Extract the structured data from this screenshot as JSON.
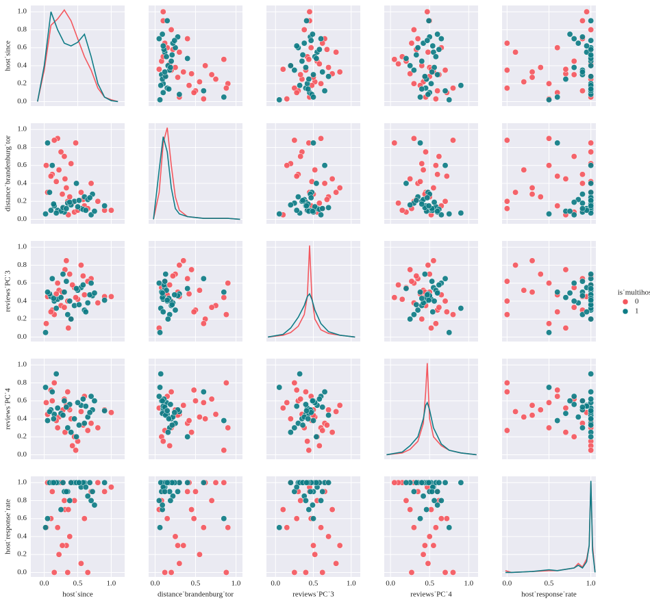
{
  "chart_data": {
    "type": "pairplot",
    "legend": {
      "title": "is˙multihost",
      "loc": "right"
    },
    "variables": [
      {
        "label": "host˙since",
        "xlim": [
          -0.2,
          1.2
        ],
        "xticks": [
          {
            "value": 0,
            "label": "0.0"
          },
          {
            "value": 0.5,
            "label": "0.5"
          },
          {
            "value": 1,
            "label": "1.0"
          }
        ],
        "ylim": [
          -0.05,
          1.07
        ],
        "yticks": [
          {
            "value": 0,
            "label": "0.0"
          },
          {
            "value": 0.2,
            "label": "0.2"
          },
          {
            "value": 0.4,
            "label": "0.4"
          },
          {
            "value": 0.6,
            "label": "0.6"
          },
          {
            "value": 0.8,
            "label": "0.8"
          },
          {
            "value": 1,
            "label": "1.0"
          }
        ],
        "kde_x": [
          -0.1,
          0,
          0.1,
          0.2,
          0.3,
          0.4,
          0.5,
          0.6,
          0.7,
          0.8,
          0.9,
          1.0,
          1.1
        ]
      },
      {
        "label": "distance˙brandenburg˙tor",
        "xlim": [
          -0.08,
          1.08
        ],
        "xticks": [
          {
            "value": 0,
            "label": "0.0"
          },
          {
            "value": 0.5,
            "label": "0.5"
          },
          {
            "value": 1,
            "label": "1.0"
          }
        ],
        "ylim": [
          -0.05,
          1.07
        ],
        "yticks": [
          {
            "value": 0,
            "label": "0.0"
          },
          {
            "value": 0.2,
            "label": "0.2"
          },
          {
            "value": 0.4,
            "label": "0.4"
          },
          {
            "value": 0.6,
            "label": "0.6"
          },
          {
            "value": 0.8,
            "label": "0.8"
          },
          {
            "value": 1,
            "label": "1.0"
          }
        ],
        "kde_x": [
          -0.02,
          0.05,
          0.1,
          0.15,
          0.2,
          0.25,
          0.3,
          0.4,
          0.5,
          0.6,
          0.8,
          0.9,
          1.05
        ]
      },
      {
        "label": "reviews˙PC˙3",
        "xlim": [
          -0.12,
          1.12
        ],
        "xticks": [
          {
            "value": 0,
            "label": "0.0"
          },
          {
            "value": 0.5,
            "label": "0.5"
          },
          {
            "value": 1,
            "label": "1.0"
          }
        ],
        "ylim": [
          -0.05,
          1.07
        ],
        "yticks": [
          {
            "value": 0,
            "label": "0.0"
          },
          {
            "value": 0.2,
            "label": "0.2"
          },
          {
            "value": 0.4,
            "label": "0.4"
          },
          {
            "value": 0.6,
            "label": "0.6"
          },
          {
            "value": 0.8,
            "label": "0.8"
          },
          {
            "value": 1,
            "label": "1.0"
          }
        ],
        "kde_x": [
          -0.1,
          0.1,
          0.2,
          0.3,
          0.38,
          0.42,
          0.45,
          0.48,
          0.52,
          0.6,
          0.7,
          0.85,
          1.05
        ]
      },
      {
        "label": "reviews˙PC˙4",
        "xlim": [
          -0.08,
          1.12
        ],
        "xticks": [
          {
            "value": 0,
            "label": "0.0"
          },
          {
            "value": 0.5,
            "label": "0.5"
          },
          {
            "value": 1,
            "label": "1.0"
          }
        ],
        "ylim": [
          -0.05,
          1.07
        ],
        "yticks": [
          {
            "value": 0,
            "label": "0.0"
          },
          {
            "value": 0.2,
            "label": "0.2"
          },
          {
            "value": 0.4,
            "label": "0.4"
          },
          {
            "value": 0.6,
            "label": "0.6"
          },
          {
            "value": 0.8,
            "label": "0.8"
          },
          {
            "value": 1,
            "label": "1.0"
          }
        ],
        "kde_x": [
          -0.05,
          0.15,
          0.25,
          0.35,
          0.42,
          0.45,
          0.47,
          0.5,
          0.55,
          0.65,
          0.75,
          0.9,
          1.1
        ]
      },
      {
        "label": "host˙response˙rate",
        "xlim": [
          -0.06,
          1.06
        ],
        "xticks": [
          {
            "value": 0,
            "label": "0.0"
          },
          {
            "value": 0.5,
            "label": "0.5"
          },
          {
            "value": 1,
            "label": "1.0"
          }
        ],
        "ylim": [
          -0.05,
          1.07
        ],
        "yticks": [
          {
            "value": 0,
            "label": "0.0"
          },
          {
            "value": 0.2,
            "label": "0.2"
          },
          {
            "value": 0.4,
            "label": "0.4"
          },
          {
            "value": 0.6,
            "label": "0.6"
          },
          {
            "value": 0.8,
            "label": "0.8"
          },
          {
            "value": 1,
            "label": "1.0"
          }
        ],
        "kde_x": [
          -0.02,
          0.05,
          0.3,
          0.5,
          0.6,
          0.8,
          0.85,
          0.9,
          0.95,
          0.98,
          1.0,
          1.02,
          1.05
        ]
      }
    ],
    "series": [
      {
        "name": "0",
        "color": "#f4575e",
        "columns": [
          [
            0.05,
            0.12,
            0.2,
            0.28,
            0.31,
            0.35,
            0.4,
            0.45,
            0.33,
            0.25,
            0.6,
            0.7,
            0.15,
            0.5,
            0.38,
            0.22,
            0.8,
            0.9,
            0.03,
            0.42,
            0.55,
            0.3,
            0.18,
            0.65,
            0.36,
            0.47,
            0.27,
            1.0,
            0.1,
            0.58
          ],
          [
            0.3,
            0.5,
            0.9,
            0.12,
            0.45,
            0.2,
            0.62,
            0.08,
            0.35,
            0.75,
            0.15,
            0.4,
            0.88,
            0.1,
            0.25,
            0.55,
            0.2,
            0.1,
            0.6,
            0.18,
            0.3,
            0.7,
            0.42,
            0.12,
            0.05,
            0.85,
            0.28,
            0.1,
            0.48,
            0.22
          ],
          [
            0.45,
            0.3,
            0.6,
            0.5,
            0.75,
            0.4,
            0.2,
            0.55,
            0.85,
            0.35,
            0.47,
            0.65,
            0.25,
            0.42,
            0.7,
            0.52,
            0.38,
            0.45,
            0.15,
            0.58,
            0.8,
            0.33,
            0.48,
            0.62,
            0.1,
            0.44,
            0.5,
            0.45,
            0.28,
            0.68
          ],
          [
            0.45,
            0.6,
            0.3,
            0.5,
            0.25,
            0.7,
            0.4,
            0.2,
            0.55,
            0.45,
            0.65,
            0.35,
            0.8,
            0.15,
            0.5,
            0.42,
            0.3,
            0.5,
            0.58,
            0.1,
            0.48,
            0.62,
            0.38,
            0.27,
            0.52,
            0.05,
            0.44,
            0.47,
            0.72,
            0.33
          ],
          [
            1.0,
            0.9,
            0.5,
            1.0,
            0.7,
            0.0,
            1.0,
            0.8,
            0.3,
            1.0,
            0.6,
            0.9,
            0.0,
            1.0,
            0.4,
            0.2,
            1.0,
            0.9,
            0.5,
            1.0,
            0.1,
            0.8,
            1.0,
            0.0,
            0.7,
            1.0,
            0.3,
            0.95,
            0.6,
            1.0
          ]
        ],
        "kde": [
          [
            0,
            0.35,
            0.85,
            0.92,
            1.02,
            0.9,
            0.7,
            0.5,
            0.35,
            0.15,
            0.05,
            0.02,
            0
          ],
          [
            0,
            0.3,
            0.85,
            1.02,
            0.6,
            0.25,
            0.1,
            0.03,
            0.02,
            0.01,
            0.01,
            0.01,
            0
          ],
          [
            0,
            0.02,
            0.05,
            0.12,
            0.25,
            0.45,
            1.02,
            0.45,
            0.2,
            0.08,
            0.04,
            0.02,
            0
          ],
          [
            0,
            0.02,
            0.06,
            0.15,
            0.35,
            0.7,
            1.02,
            0.4,
            0.2,
            0.1,
            0.05,
            0.02,
            0
          ],
          [
            0.02,
            0,
            0.01,
            0.02,
            0.02,
            0.05,
            0.1,
            0.06,
            0.15,
            0.3,
            1.0,
            0.3,
            0
          ]
        ]
      },
      {
        "name": "1",
        "color": "#0e7c86",
        "columns": [
          [
            0.1,
            0.15,
            0.3,
            0.45,
            0.55,
            0.6,
            0.7,
            0.08,
            0.2,
            0.35,
            0.5,
            0.65,
            0.12,
            0.25,
            0.4,
            0.58,
            0.72,
            0.05,
            0.18,
            0.28,
            0.38,
            0.48,
            0.62,
            0.68,
            0.02,
            0.14,
            0.33,
            0.52,
            0.75,
            0.9
          ],
          [
            0.1,
            0.15,
            0.08,
            0.2,
            0.12,
            0.25,
            0.05,
            0.3,
            0.1,
            0.18,
            0.14,
            0.22,
            0.6,
            0.09,
            0.16,
            0.11,
            0.28,
            0.85,
            0.07,
            0.13,
            0.19,
            0.4,
            0.1,
            0.24,
            0.06,
            0.17,
            0.12,
            0.21,
            0.09,
            0.15
          ],
          [
            0.45,
            0.4,
            0.5,
            0.35,
            0.55,
            0.3,
            0.6,
            0.48,
            0.42,
            0.25,
            0.52,
            0.38,
            0.65,
            0.44,
            0.2,
            0.58,
            0.46,
            0.5,
            0.32,
            0.7,
            0.4,
            0.54,
            0.28,
            0.47,
            0.05,
            0.43,
            0.62,
            0.36,
            0.49,
            0.41
          ],
          [
            0.5,
            0.45,
            0.6,
            0.4,
            0.55,
            0.35,
            0.65,
            0.48,
            0.52,
            0.3,
            0.58,
            0.42,
            0.7,
            0.46,
            0.25,
            0.62,
            0.5,
            0.38,
            0.9,
            0.44,
            0.56,
            0.2,
            0.54,
            0.47,
            0.75,
            0.4,
            0.53,
            0.33,
            0.6,
            0.49
          ],
          [
            1.0,
            1.0,
            0.9,
            1.0,
            0.95,
            1.0,
            0.8,
            1.0,
            1.0,
            0.9,
            1.0,
            0.85,
            1.0,
            0.7,
            1.0,
            1.0,
            0.9,
            0.6,
            1.0,
            1.0,
            0.8,
            1.0,
            0.95,
            1.0,
            0.5,
            1.0,
            0.9,
            1.0,
            0.75,
            1.0
          ]
        ],
        "kde": [
          [
            0,
            0.4,
            1.0,
            0.8,
            0.65,
            0.62,
            0.66,
            0.75,
            0.5,
            0.2,
            0.05,
            0.01,
            0
          ],
          [
            0,
            0.55,
            0.92,
            0.75,
            0.35,
            0.12,
            0.06,
            0.03,
            0.02,
            0.01,
            0.01,
            0.01,
            0
          ],
          [
            0,
            0.03,
            0.1,
            0.22,
            0.35,
            0.45,
            0.48,
            0.42,
            0.3,
            0.15,
            0.06,
            0.02,
            0
          ],
          [
            0,
            0.03,
            0.1,
            0.2,
            0.4,
            0.55,
            0.58,
            0.5,
            0.3,
            0.12,
            0.05,
            0.02,
            0
          ],
          [
            0,
            0,
            0.01,
            0.03,
            0.02,
            0.05,
            0.08,
            0.05,
            0.12,
            0.3,
            1.02,
            0.25,
            0
          ]
        ]
      }
    ]
  }
}
